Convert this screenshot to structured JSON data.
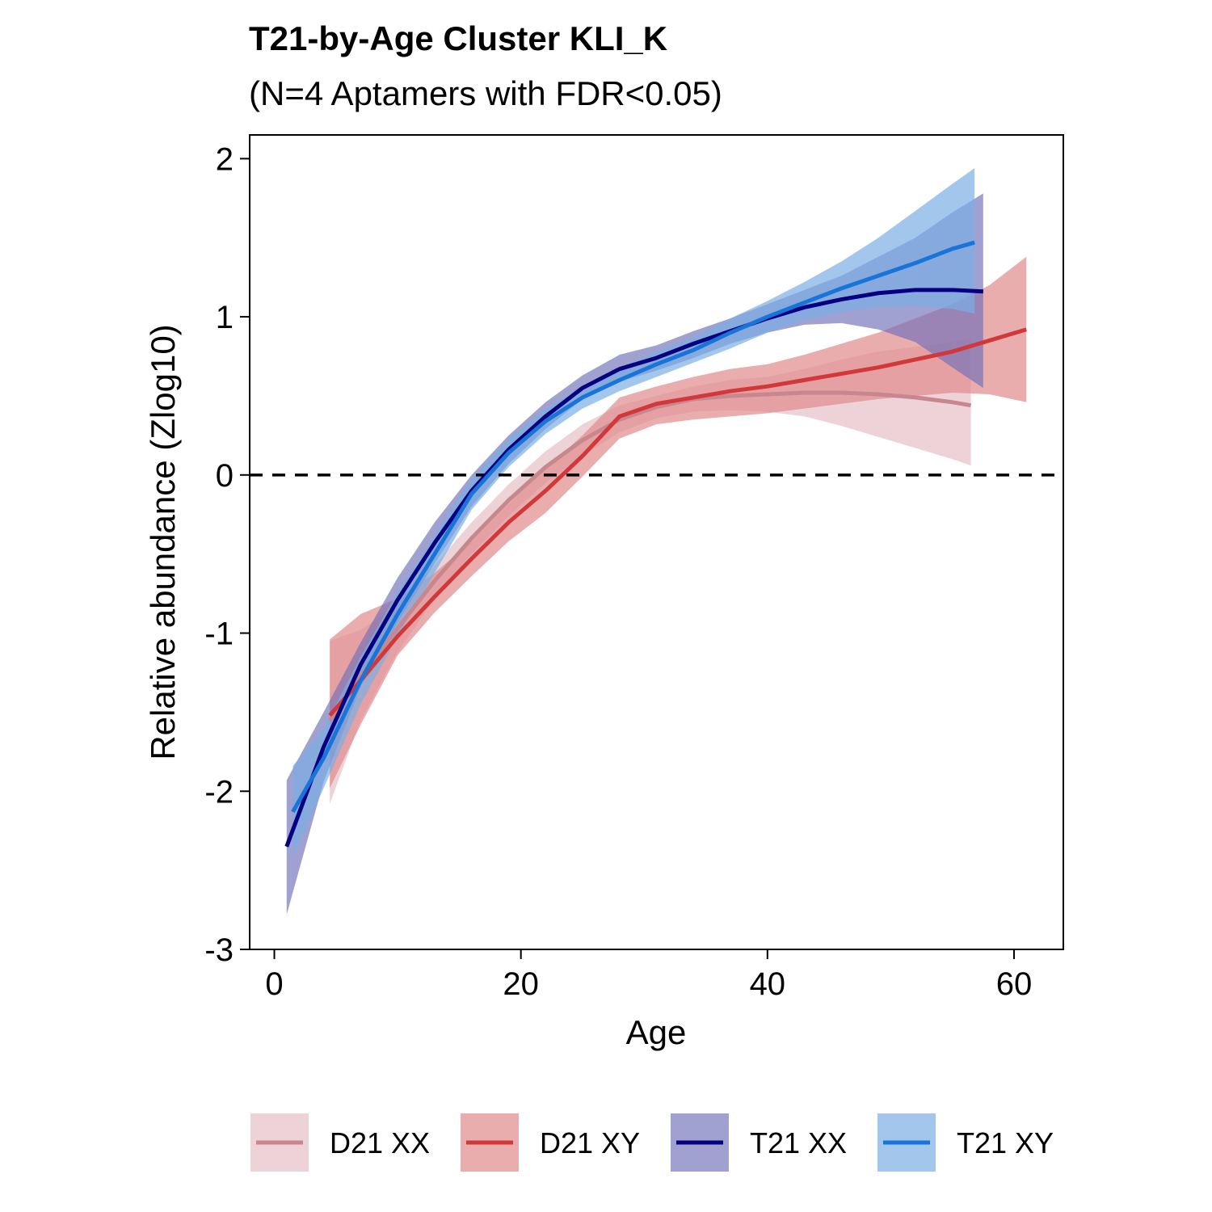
{
  "chart_data": {
    "type": "line",
    "title": "T21-by-Age Cluster KLI_K",
    "subtitle": "(N=4 Aptamers with FDR<0.05)",
    "xlabel": "Age",
    "ylabel": "Relative abundance (Zlog10)",
    "xlim": [
      -2,
      64
    ],
    "ylim": [
      -3,
      2.15
    ],
    "xticks": [
      0,
      20,
      40,
      60
    ],
    "yticks": [
      -3,
      -2,
      -1,
      0,
      1,
      2
    ],
    "reference_line": {
      "y": 0,
      "style": "dashed"
    },
    "grid": false,
    "legend_position": "bottom",
    "series": [
      {
        "name": "D21 XX",
        "line_color": "#C8878F",
        "band_color": "#E8C8CD",
        "band_opacity": 0.8,
        "x": [
          4.5,
          7,
          10,
          13,
          16,
          19,
          22,
          25,
          28,
          31,
          34,
          37,
          40,
          43,
          46,
          49,
          52,
          55,
          56.5
        ],
        "y": [
          -1.55,
          -1.27,
          -0.97,
          -0.67,
          -0.4,
          -0.16,
          0.05,
          0.22,
          0.35,
          0.43,
          0.48,
          0.5,
          0.51,
          0.52,
          0.52,
          0.51,
          0.49,
          0.46,
          0.44
        ],
        "lower": [
          -2.08,
          -1.55,
          -1.12,
          -0.78,
          -0.5,
          -0.26,
          -0.05,
          0.12,
          0.27,
          0.36,
          0.4,
          0.41,
          0.4,
          0.37,
          0.31,
          0.24,
          0.17,
          0.1,
          0.06
        ],
        "upper": [
          -1.05,
          -0.98,
          -0.82,
          -0.57,
          -0.3,
          -0.06,
          0.15,
          0.32,
          0.44,
          0.5,
          0.56,
          0.6,
          0.62,
          0.67,
          0.73,
          0.78,
          0.81,
          0.84,
          0.86
        ]
      },
      {
        "name": "D21 XY",
        "line_color": "#D2383A",
        "band_color": "#E08A8C",
        "band_opacity": 0.7,
        "x": [
          4.5,
          7,
          10,
          13,
          16,
          19,
          22,
          25,
          28,
          31,
          34,
          37,
          40,
          43,
          46,
          49,
          52,
          55,
          58,
          61
        ],
        "y": [
          -1.52,
          -1.3,
          -1.02,
          -0.77,
          -0.53,
          -0.3,
          -0.1,
          0.12,
          0.37,
          0.45,
          0.49,
          0.53,
          0.56,
          0.6,
          0.64,
          0.68,
          0.73,
          0.78,
          0.85,
          0.92
        ],
        "lower": [
          -1.98,
          -1.58,
          -1.14,
          -0.87,
          -0.64,
          -0.42,
          -0.24,
          -0.01,
          0.23,
          0.32,
          0.35,
          0.37,
          0.39,
          0.42,
          0.45,
          0.48,
          0.5,
          0.52,
          0.51,
          0.46
        ],
        "upper": [
          -1.04,
          -0.88,
          -0.78,
          -0.62,
          -0.42,
          -0.18,
          0.04,
          0.25,
          0.49,
          0.56,
          0.62,
          0.67,
          0.7,
          0.76,
          0.83,
          0.9,
          0.99,
          1.08,
          1.2,
          1.38
        ]
      },
      {
        "name": "T21 XX",
        "line_color": "#050080",
        "band_color": "#6E6EB8",
        "band_opacity": 0.65,
        "x": [
          1,
          4,
          7,
          10,
          13,
          16,
          19,
          22,
          25,
          28,
          31,
          34,
          37,
          40,
          43,
          46,
          49,
          52,
          55,
          57.5
        ],
        "y": [
          -2.35,
          -1.72,
          -1.2,
          -0.79,
          -0.43,
          -0.1,
          0.16,
          0.37,
          0.55,
          0.67,
          0.74,
          0.83,
          0.91,
          0.99,
          1.06,
          1.11,
          1.15,
          1.17,
          1.17,
          1.16
        ],
        "lower": [
          -2.78,
          -1.94,
          -1.34,
          -0.93,
          -0.56,
          -0.2,
          0.07,
          0.29,
          0.48,
          0.59,
          0.66,
          0.74,
          0.83,
          0.9,
          0.95,
          0.96,
          0.92,
          0.84,
          0.68,
          0.55
        ],
        "upper": [
          -1.93,
          -1.5,
          -1.06,
          -0.65,
          -0.3,
          0.0,
          0.25,
          0.46,
          0.63,
          0.76,
          0.82,
          0.91,
          0.99,
          1.08,
          1.17,
          1.26,
          1.38,
          1.5,
          1.66,
          1.78
        ]
      },
      {
        "name": "T21 XY",
        "line_color": "#1874D8",
        "band_color": "#7AAEE4",
        "band_opacity": 0.7,
        "x": [
          1.5,
          4,
          7,
          10,
          13,
          16,
          19,
          22,
          25,
          28,
          31,
          34,
          37,
          40,
          43,
          46,
          49,
          52,
          55,
          56.8
        ],
        "y": [
          -2.13,
          -1.79,
          -1.3,
          -0.88,
          -0.5,
          -0.12,
          0.14,
          0.34,
          0.49,
          0.6,
          0.7,
          0.79,
          0.9,
          1.0,
          1.09,
          1.18,
          1.26,
          1.34,
          1.43,
          1.47
        ],
        "lower": [
          -2.42,
          -1.98,
          -1.45,
          -1.02,
          -0.62,
          -0.22,
          0.05,
          0.26,
          0.42,
          0.53,
          0.62,
          0.71,
          0.8,
          0.9,
          0.98,
          1.03,
          1.06,
          1.07,
          1.05,
          1.02
        ],
        "upper": [
          -1.84,
          -1.6,
          -1.15,
          -0.74,
          -0.38,
          -0.02,
          0.23,
          0.42,
          0.56,
          0.67,
          0.78,
          0.87,
          0.99,
          1.1,
          1.22,
          1.35,
          1.5,
          1.67,
          1.84,
          1.94
        ]
      }
    ]
  }
}
